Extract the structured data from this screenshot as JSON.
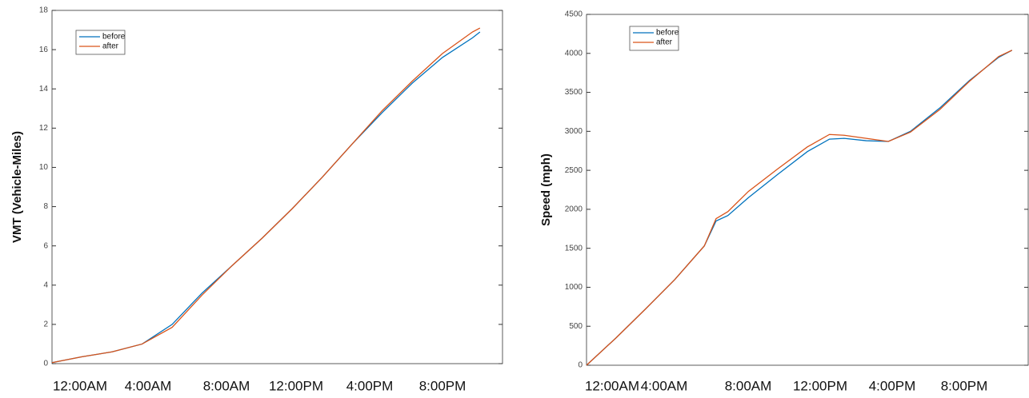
{
  "chart_data": [
    {
      "type": "line",
      "y_label": "VMT (Vehicle-Miles)",
      "x": [
        0,
        20,
        40,
        60,
        80,
        100,
        120,
        140,
        160,
        180,
        200,
        220,
        240,
        260,
        280,
        285
      ],
      "xlim": [
        0,
        300
      ],
      "ylim": [
        0,
        18
      ],
      "yticks": [
        0,
        2,
        4,
        6,
        8,
        10,
        12,
        14,
        16,
        18
      ],
      "x_labels": [
        "12:00AM",
        "4:00AM",
        "8:00AM",
        "12:00PM",
        "4:00PM",
        "8:00PM"
      ],
      "legend": "upper left",
      "series": [
        {
          "name": "before",
          "color": "#0072bd",
          "values": [
            0.05,
            0.35,
            0.6,
            1.0,
            2.0,
            3.6,
            5.0,
            6.4,
            7.9,
            9.5,
            11.2,
            12.8,
            14.3,
            15.6,
            16.6,
            16.9
          ]
        },
        {
          "name": "after",
          "color": "#d95319",
          "values": [
            0.05,
            0.35,
            0.6,
            1.0,
            1.85,
            3.5,
            5.0,
            6.4,
            7.9,
            9.5,
            11.2,
            12.9,
            14.4,
            15.8,
            16.9,
            17.1
          ]
        }
      ]
    },
    {
      "type": "line",
      "y_label": "Speed (mph)",
      "x": [
        0,
        20,
        40,
        60,
        80,
        88,
        96,
        110,
        130,
        150,
        165,
        175,
        190,
        205,
        220,
        240,
        260,
        280,
        289
      ],
      "xlim": [
        0,
        300
      ],
      "ylim": [
        0,
        4500
      ],
      "yticks": [
        0,
        500,
        1000,
        1500,
        2000,
        2500,
        3000,
        3500,
        4000,
        4500
      ],
      "x_labels": [
        "12:00AM",
        "4:00AM",
        "8:00AM",
        "12:00PM",
        "4:00PM",
        "8:00PM"
      ],
      "legend": "upper left",
      "series": [
        {
          "name": "before",
          "color": "#0072bd",
          "values": [
            0,
            350,
            720,
            1100,
            1530,
            1850,
            1920,
            2150,
            2450,
            2740,
            2900,
            2910,
            2880,
            2870,
            3000,
            3300,
            3650,
            3950,
            4040
          ]
        },
        {
          "name": "after",
          "color": "#d95319",
          "values": [
            0,
            350,
            720,
            1100,
            1530,
            1880,
            1970,
            2230,
            2520,
            2800,
            2960,
            2950,
            2910,
            2870,
            2990,
            3280,
            3640,
            3960,
            4040
          ]
        }
      ]
    }
  ]
}
